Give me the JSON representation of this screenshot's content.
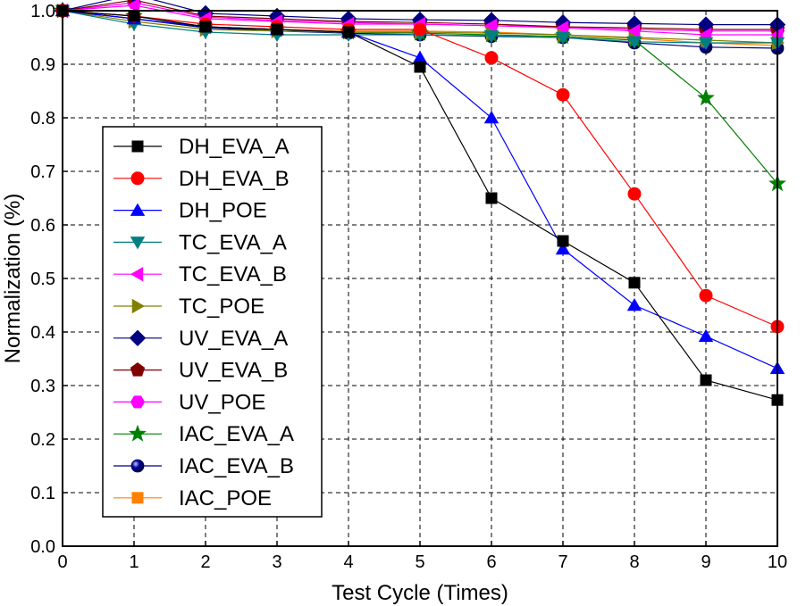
{
  "chart_data": {
    "type": "line",
    "title": "",
    "xlabel": "Test Cycle (Times)",
    "ylabel": "Normalization (%)",
    "xlim": [
      0,
      10
    ],
    "ylim": [
      0.0,
      1.0
    ],
    "x_ticks": [
      0,
      1,
      2,
      3,
      4,
      5,
      6,
      7,
      8,
      9,
      10
    ],
    "y_ticks": [
      "0.0",
      "0.1",
      "0.2",
      "0.3",
      "0.4",
      "0.5",
      "0.6",
      "0.7",
      "0.8",
      "0.9",
      "1.0"
    ],
    "grid": true,
    "legend_position": "left",
    "x": [
      0,
      1,
      2,
      3,
      4,
      5,
      6,
      7,
      8,
      9,
      10
    ],
    "series": [
      {
        "name": "DH_EVA_A",
        "color": "#000000",
        "marker": "square",
        "values": [
          1.0,
          0.99,
          0.97,
          0.965,
          0.96,
          0.895,
          0.65,
          0.57,
          0.492,
          0.31,
          0.273
        ]
      },
      {
        "name": "DH_EVA_B",
        "color": "#ff0000",
        "marker": "circle",
        "values": [
          1.0,
          0.99,
          0.975,
          0.97,
          0.965,
          0.965,
          0.912,
          0.843,
          0.658,
          0.468,
          0.41
        ]
      },
      {
        "name": "DH_POE",
        "color": "#0000ff",
        "marker": "triangle-up",
        "values": [
          1.0,
          0.985,
          0.97,
          0.965,
          0.96,
          0.912,
          0.8,
          0.555,
          0.45,
          0.392,
          0.332
        ]
      },
      {
        "name": "TC_EVA_A",
        "color": "#008080",
        "marker": "triangle-down",
        "values": [
          1.0,
          0.975,
          0.96,
          0.955,
          0.955,
          0.955,
          0.953,
          0.95,
          0.942,
          0.94,
          0.94
        ]
      },
      {
        "name": "TC_EVA_B",
        "color": "#ff00ff",
        "marker": "triangle-left",
        "values": [
          1.0,
          1.01,
          0.985,
          0.98,
          0.975,
          0.975,
          0.972,
          0.968,
          0.962,
          0.955,
          0.955
        ]
      },
      {
        "name": "TC_POE",
        "color": "#808000",
        "marker": "triangle-right",
        "values": [
          1.0,
          0.98,
          0.965,
          0.962,
          0.96,
          0.96,
          0.958,
          0.955,
          0.95,
          0.945,
          0.94
        ]
      },
      {
        "name": "UV_EVA_A",
        "color": "#000080",
        "marker": "diamond",
        "values": [
          1.0,
          1.03,
          0.995,
          0.99,
          0.985,
          0.983,
          0.982,
          0.978,
          0.976,
          0.974,
          0.974
        ]
      },
      {
        "name": "UV_EVA_B",
        "color": "#800000",
        "marker": "pentagon",
        "values": [
          1.0,
          1.02,
          0.99,
          0.985,
          0.98,
          0.978,
          0.975,
          0.97,
          0.968,
          0.965,
          0.965
        ]
      },
      {
        "name": "UV_POE",
        "color": "#ff00ff",
        "marker": "hexagon",
        "values": [
          1.0,
          1.015,
          0.988,
          0.982,
          0.978,
          0.975,
          0.972,
          0.97,
          0.965,
          0.962,
          0.962
        ]
      },
      {
        "name": "IAC_EVA_A",
        "color": "#008000",
        "marker": "star",
        "values": [
          1.0,
          0.99,
          0.97,
          0.965,
          0.96,
          0.958,
          0.955,
          0.952,
          0.945,
          0.837,
          0.677
        ]
      },
      {
        "name": "IAC_EVA_B",
        "color": "#000080",
        "marker": "ball",
        "values": [
          1.0,
          0.985,
          0.968,
          0.962,
          0.958,
          0.955,
          0.952,
          0.95,
          0.94,
          0.932,
          0.93
        ]
      },
      {
        "name": "IAC_POE",
        "color": "#ff8000",
        "marker": "square",
        "values": [
          1.0,
          0.985,
          0.968,
          0.965,
          0.962,
          0.962,
          0.96,
          0.955,
          0.948,
          0.94,
          0.935
        ]
      }
    ]
  }
}
